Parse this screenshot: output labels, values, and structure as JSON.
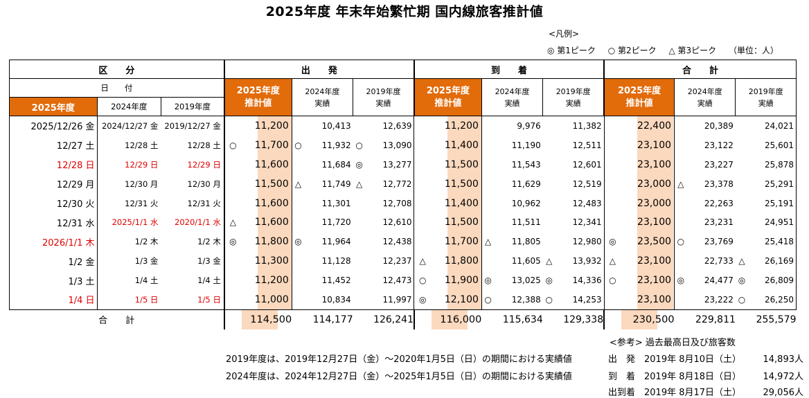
{
  "title": "2025年度 年末年始繁忙期 国内線旅客推計値",
  "legend": {
    "label": "<凡例>",
    "peak1": "◎ 第1ピーク",
    "peak2": "○ 第2ピーク",
    "peak3": "△ 第3ピーク",
    "unit": "（単位：人）"
  },
  "colors": {
    "accent": "#e26b0a",
    "highlight": "#fbd9be",
    "holiday": "#e00000"
  },
  "header": {
    "kubun": "区　　分",
    "hizuke": "日　　付",
    "fy2025": "2025年度",
    "fy2024": "2024年度",
    "fy2019": "2019年度",
    "departure": "出　　発",
    "arrival": "到　　着",
    "total": "合　　計",
    "est_line1": "2025年度",
    "est_line2": "推計値",
    "act2024_line1": "2024年度",
    "act2024_line2": "実績",
    "act2019_line1": "2019年度",
    "act2019_line2": "実績"
  },
  "rows": [
    {
      "d25": "2025/12/26 金",
      "d24": "2024/12/27 金",
      "d19": "2019/12/27 金",
      "red25": false,
      "red24": false,
      "red19": false,
      "dm": "",
      "dep": "11,200",
      "dm24": "",
      "dep24": "10,413",
      "dm19": "",
      "dep19": "12,639",
      "am": "",
      "arr": "11,200",
      "am24": "",
      "arr24": "9,976",
      "am19": "",
      "arr19": "11,382",
      "tm": "",
      "tot": "22,400",
      "tm24": "",
      "tot24": "20,389",
      "tm19": "",
      "tot19": "24,021"
    },
    {
      "d25": "12/27 土",
      "d24": "12/28 土",
      "d19": "12/28 土",
      "red25": false,
      "red24": false,
      "red19": false,
      "dm": "○",
      "dep": "11,700",
      "dm24": "○",
      "dep24": "11,932",
      "dm19": "○",
      "dep19": "13,090",
      "am": "",
      "arr": "11,400",
      "am24": "",
      "arr24": "11,190",
      "am19": "",
      "arr19": "12,511",
      "tm": "",
      "tot": "23,100",
      "tm24": "",
      "tot24": "23,122",
      "tm19": "",
      "tot19": "25,601"
    },
    {
      "d25": "12/28 日",
      "d24": "12/29 日",
      "d19": "12/29 日",
      "red25": true,
      "red24": true,
      "red19": true,
      "dm": "",
      "dep": "11,600",
      "dm24": "",
      "dep24": "11,684",
      "dm19": "◎",
      "dep19": "13,277",
      "am": "",
      "arr": "11,500",
      "am24": "",
      "arr24": "11,543",
      "am19": "",
      "arr19": "12,601",
      "tm": "",
      "tot": "23,100",
      "tm24": "",
      "tot24": "23,227",
      "tm19": "",
      "tot19": "25,878"
    },
    {
      "d25": "12/29 月",
      "d24": "12/30 月",
      "d19": "12/30 月",
      "red25": false,
      "red24": false,
      "red19": false,
      "dm": "",
      "dep": "11,500",
      "dm24": "△",
      "dep24": "11,749",
      "dm19": "△",
      "dep19": "12,772",
      "am": "",
      "arr": "11,500",
      "am24": "",
      "arr24": "11,629",
      "am19": "",
      "arr19": "12,519",
      "tm": "",
      "tot": "23,000",
      "tm24": "△",
      "tot24": "23,378",
      "tm19": "",
      "tot19": "25,291"
    },
    {
      "d25": "12/30 火",
      "d24": "12/31 火",
      "d19": "12/31 火",
      "red25": false,
      "red24": false,
      "red19": false,
      "dm": "",
      "dep": "11,600",
      "dm24": "",
      "dep24": "11,301",
      "dm19": "",
      "dep19": "12,708",
      "am": "",
      "arr": "11,400",
      "am24": "",
      "arr24": "10,962",
      "am19": "",
      "arr19": "12,483",
      "tm": "",
      "tot": "23,000",
      "tm24": "",
      "tot24": "22,263",
      "tm19": "",
      "tot19": "25,191"
    },
    {
      "d25": "12/31 水",
      "d24": "2025/1/1 水",
      "d19": "2020/1/1 水",
      "red25": false,
      "red24": true,
      "red19": true,
      "dm": "△",
      "dep": "11,600",
      "dm24": "",
      "dep24": "11,720",
      "dm19": "",
      "dep19": "12,610",
      "am": "",
      "arr": "11,500",
      "am24": "",
      "arr24": "11,511",
      "am19": "",
      "arr19": "12,341",
      "tm": "",
      "tot": "23,100",
      "tm24": "",
      "tot24": "23,231",
      "tm19": "",
      "tot19": "24,951"
    },
    {
      "d25": "2026/1/1 木",
      "d24": "1/2 木",
      "d19": "1/2 木",
      "red25": true,
      "red24": false,
      "red19": false,
      "dm": "◎",
      "dep": "11,800",
      "dm24": "◎",
      "dep24": "11,964",
      "dm19": "",
      "dep19": "12,438",
      "am": "",
      "arr": "11,700",
      "am24": "△",
      "arr24": "11,805",
      "am19": "",
      "arr19": "12,980",
      "tm": "◎",
      "tot": "23,500",
      "tm24": "○",
      "tot24": "23,769",
      "tm19": "",
      "tot19": "25,418"
    },
    {
      "d25": "1/2 金",
      "d24": "1/3 金",
      "d19": "1/3 金",
      "red25": false,
      "red24": false,
      "red19": false,
      "dm": "",
      "dep": "11,300",
      "dm24": "",
      "dep24": "11,128",
      "dm19": "",
      "dep19": "12,237",
      "am": "△",
      "arr": "11,800",
      "am24": "",
      "arr24": "11,605",
      "am19": "△",
      "arr19": "13,932",
      "tm": "△",
      "tot": "23,100",
      "tm24": "",
      "tot24": "22,733",
      "tm19": "△",
      "tot19": "26,169"
    },
    {
      "d25": "1/3 土",
      "d24": "1/4 土",
      "d19": "1/4 土",
      "red25": false,
      "red24": false,
      "red19": false,
      "dm": "",
      "dep": "11,200",
      "dm24": "",
      "dep24": "11,452",
      "dm19": "",
      "dep19": "12,473",
      "am": "○",
      "arr": "11,900",
      "am24": "◎",
      "arr24": "13,025",
      "am19": "◎",
      "arr19": "14,336",
      "tm": "○",
      "tot": "23,100",
      "tm24": "◎",
      "tot24": "24,477",
      "tm19": "◎",
      "tot19": "26,809"
    },
    {
      "d25": "1/4 日",
      "d24": "1/5 日",
      "d19": "1/5 日",
      "red25": true,
      "red24": true,
      "red19": true,
      "dm": "",
      "dep": "11,000",
      "dm24": "",
      "dep24": "10,834",
      "dm19": "",
      "dep19": "11,997",
      "am": "◎",
      "arr": "12,100",
      "am24": "○",
      "arr24": "12,388",
      "am19": "○",
      "arr19": "14,253",
      "tm": "",
      "tot": "23,100",
      "tm24": "",
      "tot24": "23,222",
      "tm19": "○",
      "tot19": "26,250"
    }
  ],
  "totals": {
    "label": "合　　計",
    "dep": "114,500",
    "dep24": "114,177",
    "dep19": "126,241",
    "arr": "116,000",
    "arr24": "115,634",
    "arr19": "129,338",
    "tot": "230,500",
    "tot24": "229,811",
    "tot19": "255,579"
  },
  "notes": {
    "heading": "<参考> 過去最高日及び旅客数",
    "line1": "2019年度は、2019年12月27日（金）～2020年1月5日（日）の期間における実績値",
    "line2": "2024年度は、2024年12月27日（金）～2025年1月5日（日）の期間における実績値",
    "peaks": [
      {
        "label": "出　発",
        "date": "2019年 8月10日（土）",
        "value": "14,893人"
      },
      {
        "label": "到　着",
        "date": "2019年 8月18日（日）",
        "value": "14,972人"
      },
      {
        "label": "出到着",
        "date": "2019年 8月17日（土）",
        "value": "29,056人"
      }
    ]
  }
}
